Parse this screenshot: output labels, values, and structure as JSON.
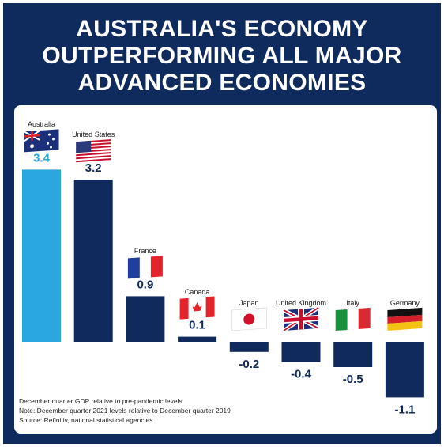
{
  "chart_data": {
    "type": "bar",
    "title": "AUSTRALIA'S ECONOMY OUTPERFORMING ALL MAJOR ADVANCED ECONOMIES",
    "categories": [
      "Australia",
      "United States",
      "France",
      "Canada",
      "Japan",
      "United Kingdom",
      "Italy",
      "Germany"
    ],
    "values": [
      3.4,
      3.2,
      0.9,
      0.1,
      -0.2,
      -0.4,
      -0.5,
      -1.1
    ],
    "colors": [
      "#2aa7df",
      "#112a5e",
      "#112a5e",
      "#112a5e",
      "#112a5e",
      "#112a5e",
      "#112a5e",
      "#112a5e"
    ],
    "notes": [
      "December quarter GDP relative to pre-pandemic levels",
      "Note: December quarter 2021 levels relative to December quarter 2019",
      "Source: Refinitiv, national statistical agencies"
    ]
  }
}
